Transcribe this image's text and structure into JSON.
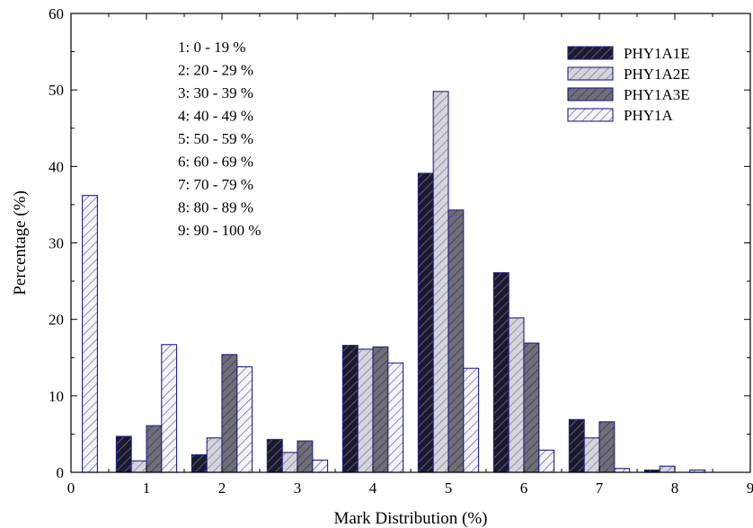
{
  "chart_data": {
    "type": "bar",
    "title": "",
    "xlabel": "Mark Distribution (%)",
    "ylabel": "Percentage (%)",
    "xlim": [
      0,
      9
    ],
    "ylim": [
      0,
      60
    ],
    "xticks": [
      "0",
      "1",
      "2",
      "3",
      "4",
      "5",
      "6",
      "7",
      "8",
      "9"
    ],
    "yticks": [
      "0",
      "10",
      "20",
      "30",
      "40",
      "50",
      "60"
    ],
    "grid": false,
    "legend_position": "top-right",
    "categories": [
      1,
      2,
      3,
      4,
      5,
      6,
      7,
      8
    ],
    "series": [
      {
        "name": "PHY1A1E",
        "color": "#1a1a2e",
        "fill": "dark",
        "values": [
          4.7,
          2.3,
          4.3,
          16.6,
          39.1,
          26.1,
          6.9,
          0.3
        ]
      },
      {
        "name": "PHY1A2E",
        "color": "#c8c8d0",
        "fill": "light-gray",
        "values": [
          1.5,
          4.5,
          2.6,
          16.1,
          49.8,
          20.2,
          4.5,
          0.8
        ]
      },
      {
        "name": "PHY1A3E",
        "color": "#777780",
        "fill": "mid-gray",
        "values": [
          6.1,
          15.4,
          4.1,
          16.4,
          34.3,
          16.9,
          6.6,
          0.0
        ]
      },
      {
        "name": "PHY1A",
        "color": "#eeeef8",
        "fill": "white",
        "values": [
          16.7,
          13.8,
          1.6,
          14.3,
          13.6,
          2.9,
          0.5,
          0.3
        ]
      }
    ],
    "extra_bar": {
      "series": "PHY1A",
      "x": 0.25,
      "value": 36.2
    },
    "annotations": [
      "1: 0 - 19 %",
      "2: 20 - 29 %",
      "3: 30 - 39 %",
      "4: 40 - 49 %",
      "5: 50 - 59 %",
      "6: 60 - 69 %",
      "7: 70 - 79 %",
      "8: 80 - 89 %",
      "9: 90 - 100 %"
    ]
  }
}
